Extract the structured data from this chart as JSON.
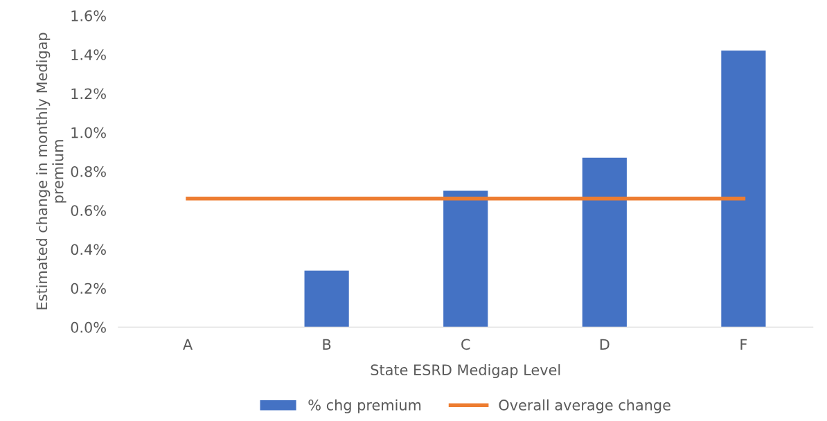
{
  "chart_data": {
    "type": "bar",
    "xlabel": "State ESRD Medigap Level",
    "ylabel": "Estimated change in monthly Medigap premium",
    "categories": [
      "A",
      "B",
      "C",
      "D",
      "F"
    ],
    "series": [
      {
        "name": "% chg premium",
        "color": "#4472c4",
        "values": [
          0,
          0.29,
          0.7,
          0.87,
          1.42
        ]
      },
      {
        "name": "Overall average change",
        "type": "line",
        "color": "#ed7d31",
        "values": [
          0.66,
          0.66,
          0.66,
          0.66,
          0.66
        ]
      }
    ],
    "ylim": [
      0,
      1.6
    ],
    "yticks": [
      {
        "value": 0,
        "label": "0.0%"
      },
      {
        "value": 0.2,
        "label": "0.2%"
      },
      {
        "value": 0.4,
        "label": "0.4%"
      },
      {
        "value": 0.6,
        "label": "0.6%"
      },
      {
        "value": 0.8,
        "label": "0.8%"
      },
      {
        "value": 1.0,
        "label": "1.0%"
      },
      {
        "value": 1.2,
        "label": "1.2%"
      },
      {
        "value": 1.4,
        "label": "1.4%"
      },
      {
        "value": 1.6,
        "label": "1.6%"
      }
    ],
    "grid": false,
    "legend": "bottom",
    "marker": "none"
  }
}
